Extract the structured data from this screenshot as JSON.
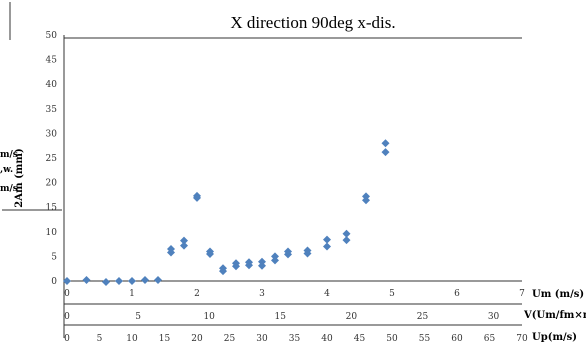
{
  "chart_data": {
    "type": "scatter",
    "title": "X direction 90deg x-dis.",
    "ylabel": "2Am (mm)",
    "ylim": [
      0,
      50
    ],
    "yticks": [
      "50",
      "45",
      "40",
      "35",
      "30",
      "25",
      "20",
      "15",
      "10",
      "5",
      "0"
    ],
    "xaxes": [
      {
        "label": "Um (m/s)",
        "ticks": [
          "0",
          "1",
          "2",
          "3",
          "4",
          "5",
          "6",
          "7"
        ],
        "xlim": [
          0,
          7
        ]
      },
      {
        "label": "V(Um/fm×m)",
        "ticks": [
          "0",
          "5",
          "10",
          "15",
          "20",
          "25",
          "30"
        ],
        "xlim": [
          0,
          32
        ]
      },
      {
        "label": "Up(m/s)",
        "ticks": [
          "0",
          "5",
          "10",
          "15",
          "20",
          "25",
          "30",
          "35",
          "40",
          "45",
          "50",
          "55",
          "60",
          "65",
          "70"
        ],
        "xlim": [
          0,
          70
        ]
      }
    ],
    "series": [
      {
        "color": "#4f81bd",
        "x": [
          0.0,
          0.3,
          0.6,
          0.8,
          1.0,
          1.2,
          1.4,
          1.6,
          1.6,
          1.8,
          1.8,
          2.0,
          2.0,
          2.2,
          2.2,
          2.4,
          2.4,
          2.6,
          2.6,
          2.8,
          2.8,
          3.0,
          3.0,
          3.2,
          3.2,
          3.4,
          3.4,
          3.7,
          3.7,
          4.0,
          4.0,
          4.3,
          4.3,
          4.6,
          4.6,
          4.9,
          4.9
        ],
        "y": [
          0.0,
          0.2,
          -0.2,
          0.0,
          0.0,
          0.2,
          0.2,
          6.5,
          5.8,
          8.2,
          7.2,
          17.3,
          16.9,
          6.0,
          5.5,
          2.6,
          2.0,
          3.6,
          3.0,
          3.8,
          3.2,
          3.9,
          3.1,
          5.0,
          4.2,
          6.0,
          5.4,
          6.2,
          5.6,
          8.4,
          7.0,
          9.6,
          8.3,
          17.2,
          16.4,
          28.0,
          26.2
        ]
      }
    ]
  },
  "side_labels": {
    "line1": "m/s",
    "line2": ",w.",
    "line3": "m/s"
  }
}
